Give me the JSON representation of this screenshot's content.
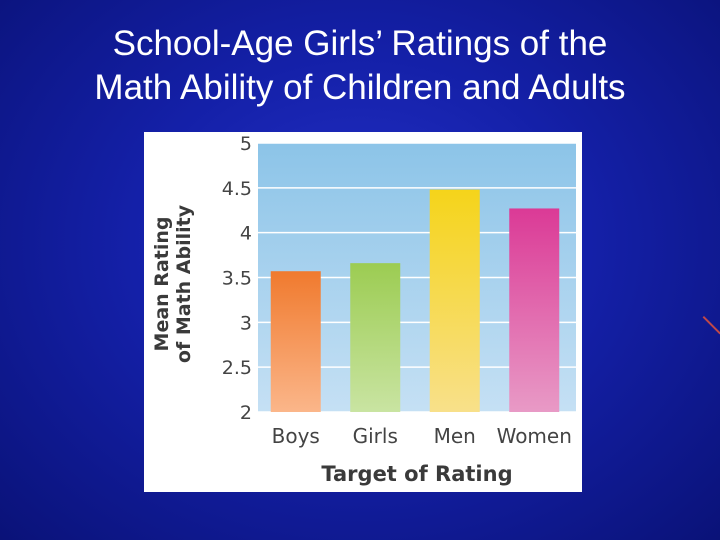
{
  "slide": {
    "title_line1": "School-Age Girls’ Ratings of the",
    "title_line2": "Math Ability of Children and Adults"
  },
  "chart_data": {
    "type": "bar",
    "categories": [
      "Boys",
      "Girls",
      "Men",
      "Women"
    ],
    "values": [
      3.57,
      3.66,
      4.48,
      4.27
    ],
    "xlabel": "Target of Rating",
    "ylabel_line1": "Mean Rating",
    "ylabel_line2": "of Math Ability",
    "ylim": [
      2,
      5
    ],
    "yticks": [
      2,
      2.5,
      3,
      3.5,
      4,
      4.5,
      5
    ],
    "grid": true,
    "bar_colors": [
      [
        "#f07a2e",
        "#fbb68a"
      ],
      [
        "#9ccc52",
        "#c9e4a2"
      ],
      [
        "#f5d41a",
        "#f8e08a"
      ],
      [
        "#db3a96",
        "#e89ac6"
      ]
    ],
    "plot_background": [
      "#8cc4e8",
      "#c5e0f4"
    ]
  }
}
